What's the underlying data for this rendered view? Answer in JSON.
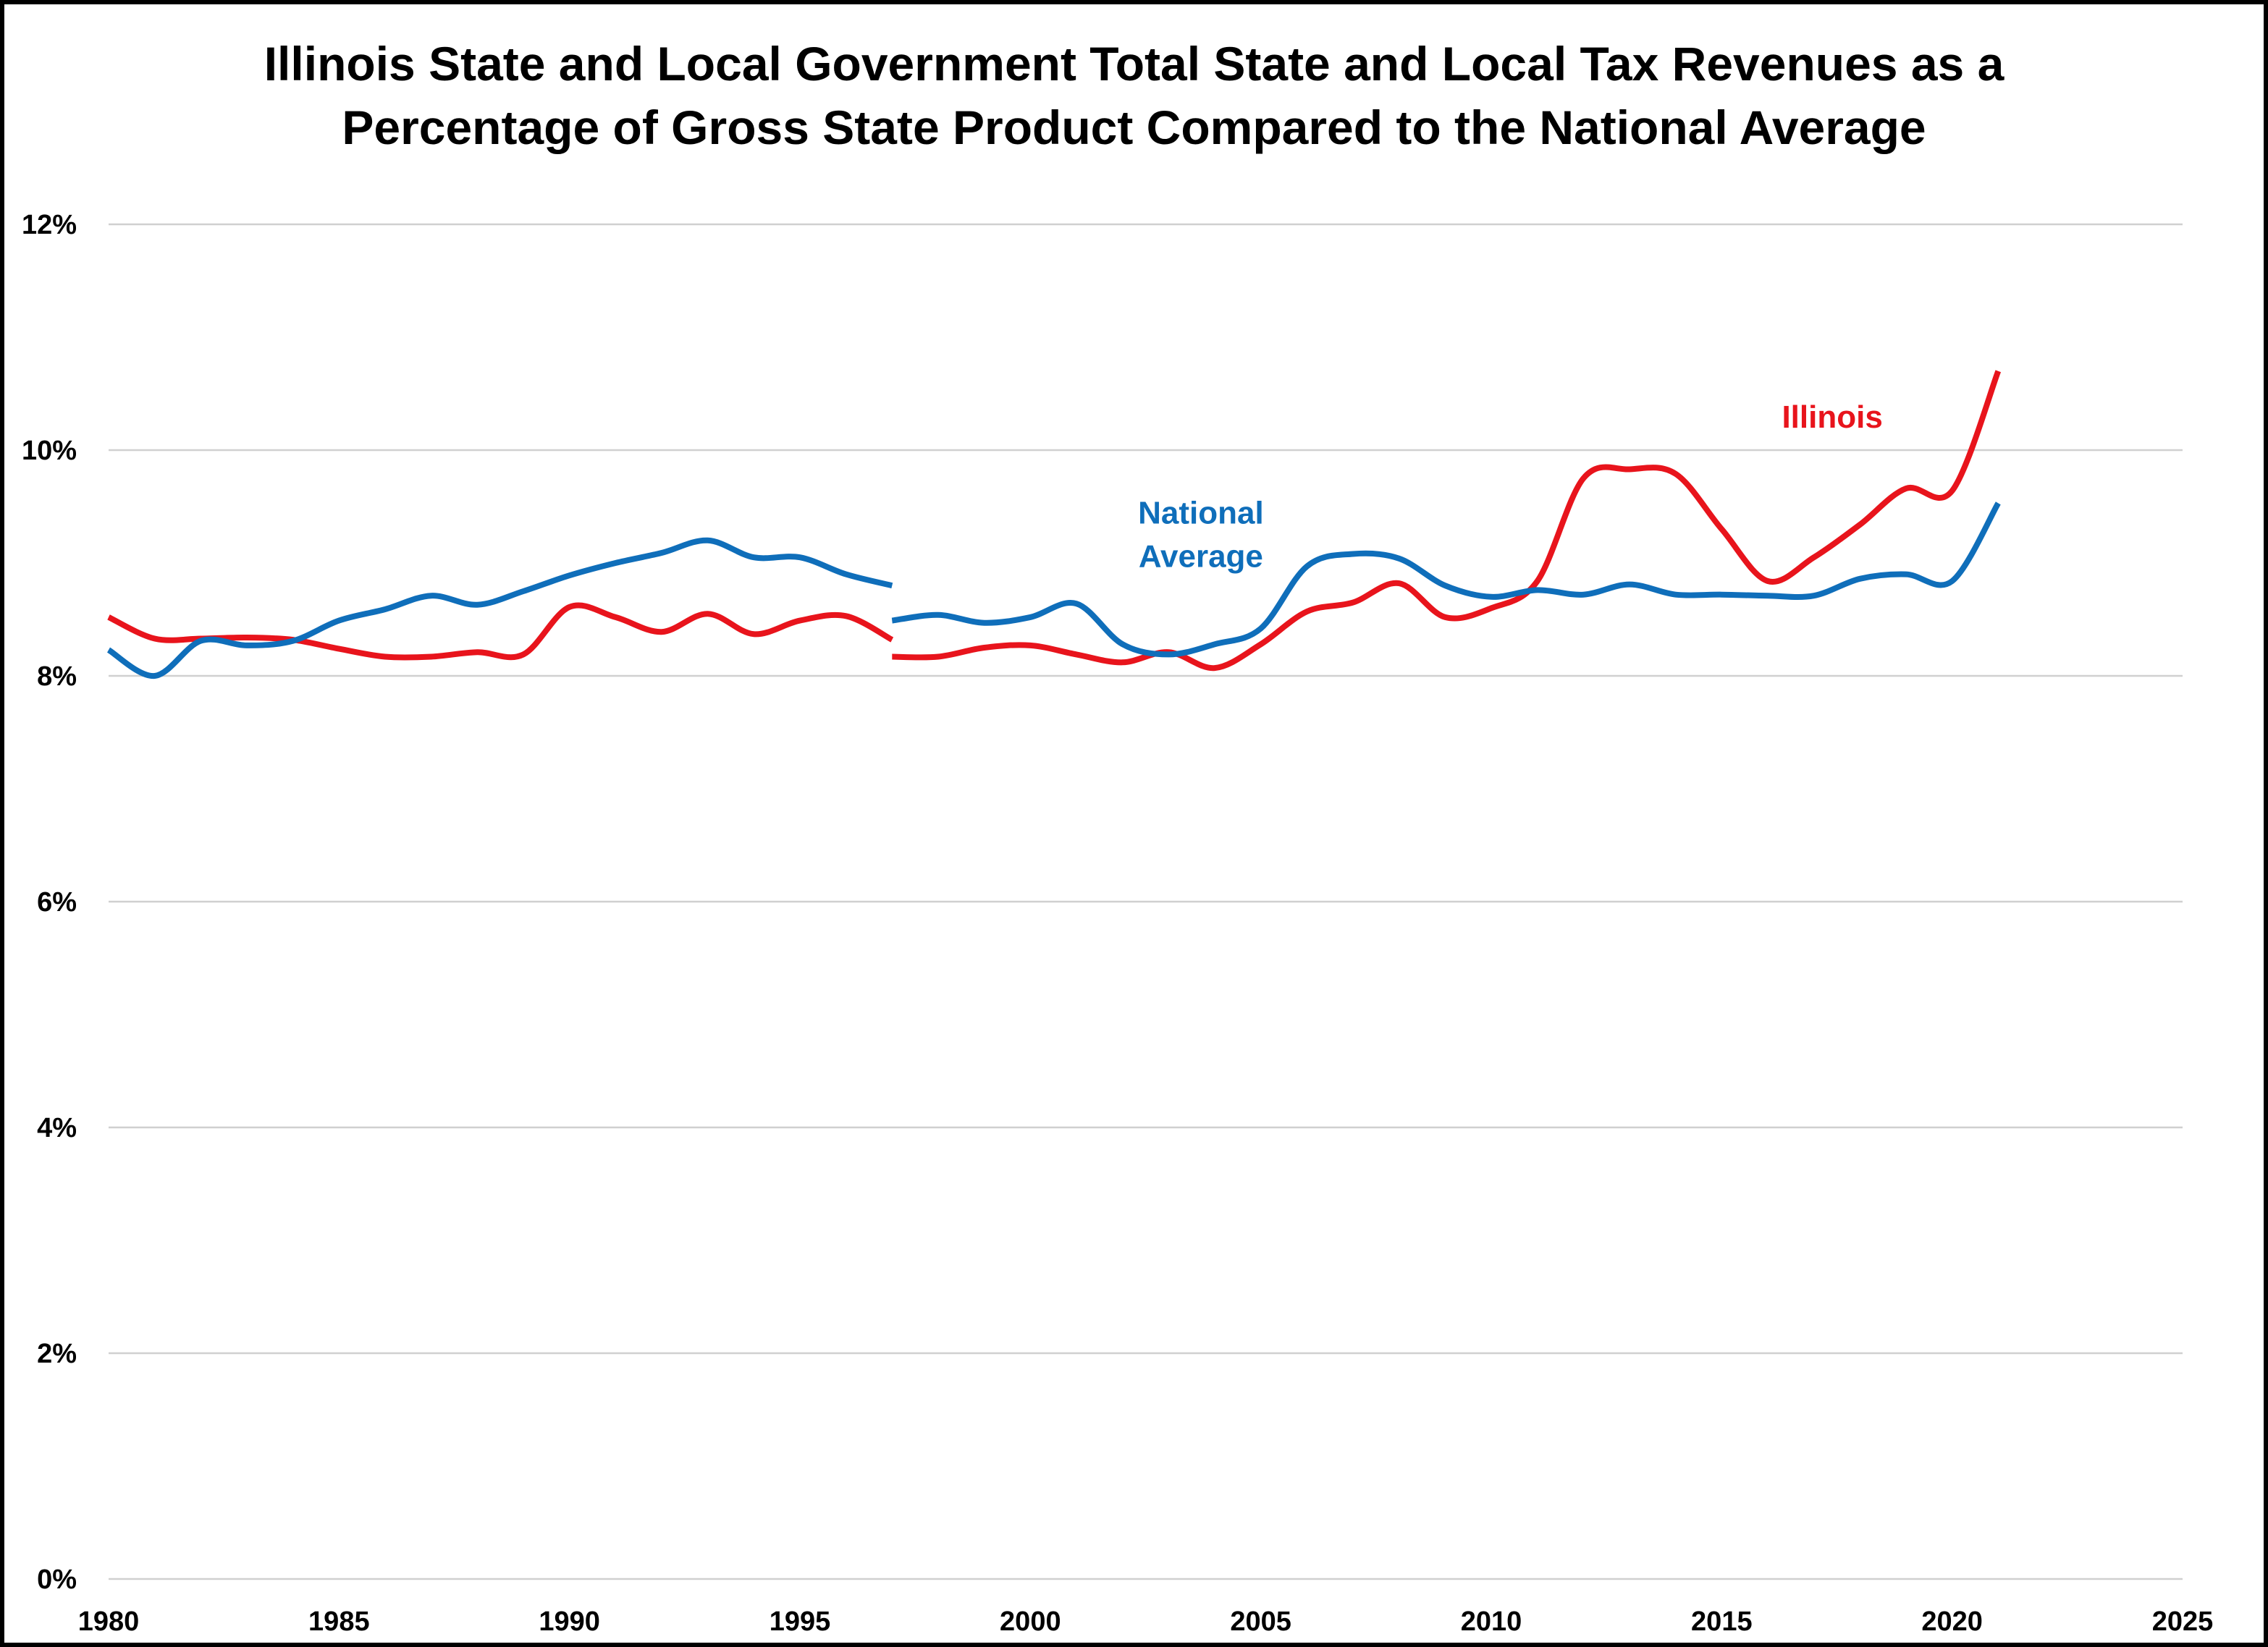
{
  "chart_data": {
    "type": "line",
    "title_lines": [
      "Illinois State and Local Government Total State and Local Tax Revenues as a",
      "Percentage of Gross State Product Compared to the National Average"
    ],
    "xlabel": "",
    "ylabel": "",
    "xlim": [
      1980,
      2025
    ],
    "ylim": [
      0,
      12
    ],
    "x_ticks": [
      1980,
      1985,
      1990,
      1995,
      2000,
      2005,
      2010,
      2015,
      2020,
      2025
    ],
    "y_ticks": [
      0,
      2,
      4,
      6,
      8,
      10,
      12
    ],
    "y_tick_labels": [
      "0%",
      "2%",
      "4%",
      "6%",
      "8%",
      "10%",
      "12%"
    ],
    "grid": "horizontal",
    "legend": "none",
    "series": [
      {
        "color": "#E8141C",
        "segments": [
          {
            "x": [
              1980,
              1981,
              1982,
              1983,
              1984,
              1985,
              1986,
              1987,
              1988,
              1989,
              1990,
              1991,
              1992,
              1993,
              1994,
              1995,
              1996,
              1997
            ],
            "y": [
              8.52,
              8.33,
              8.33,
              8.34,
              8.32,
              8.24,
              8.17,
              8.17,
              8.21,
              8.19,
              8.61,
              8.52,
              8.39,
              8.55,
              8.37,
              8.49,
              8.53,
              8.32
            ]
          },
          {
            "x": [
              1997,
              1998,
              1999,
              2000,
              2001,
              2002,
              2003,
              2004,
              2005,
              2006,
              2007,
              2008,
              2009,
              2010,
              2011,
              2012,
              2013,
              2014,
              2015,
              2016,
              2017,
              2018,
              2019,
              2020,
              2021
            ],
            "y": [
              8.17,
              8.17,
              8.25,
              8.27,
              8.19,
              8.12,
              8.21,
              8.07,
              8.28,
              8.57,
              8.65,
              8.82,
              8.52,
              8.6,
              8.84,
              9.75,
              9.83,
              9.79,
              9.3,
              8.84,
              9.05,
              9.34,
              9.66,
              9.64,
              10.7
            ]
          }
        ]
      },
      {
        "color": "#0F6EBA",
        "segments": [
          {
            "x": [
              1980,
              1981,
              1982,
              1983,
              1984,
              1985,
              1986,
              1987,
              1988,
              1989,
              1990,
              1991,
              1992,
              1993,
              1994,
              1995,
              1996,
              1997
            ],
            "y": [
              8.23,
              8.0,
              8.31,
              8.27,
              8.31,
              8.49,
              8.59,
              8.71,
              8.63,
              8.75,
              8.89,
              9.0,
              9.09,
              9.2,
              9.05,
              9.05,
              8.9,
              8.8
            ]
          },
          {
            "x": [
              1997,
              1998,
              1999,
              2000,
              2001,
              2002,
              2003,
              2004,
              2005,
              2006,
              2007,
              2008,
              2009,
              2010,
              2011,
              2012,
              2013,
              2014,
              2015,
              2016,
              2017,
              2018,
              2019,
              2020,
              2021
            ],
            "y": [
              8.49,
              8.54,
              8.47,
              8.52,
              8.64,
              8.28,
              8.19,
              8.28,
              8.42,
              8.97,
              9.08,
              9.04,
              8.8,
              8.7,
              8.76,
              8.72,
              8.81,
              8.72,
              8.72,
              8.71,
              8.71,
              8.86,
              8.9,
              8.84,
              9.53
            ]
          }
        ]
      }
    ],
    "annotations": [
      {
        "lines": [
          "Illinois"
        ],
        "color": "#E8141C",
        "x": 2017.4,
        "y": 10.2
      },
      {
        "lines": [
          "National",
          "Average"
        ],
        "color": "#0F6EBA",
        "x": 2003.7,
        "y": 9.35
      }
    ]
  }
}
